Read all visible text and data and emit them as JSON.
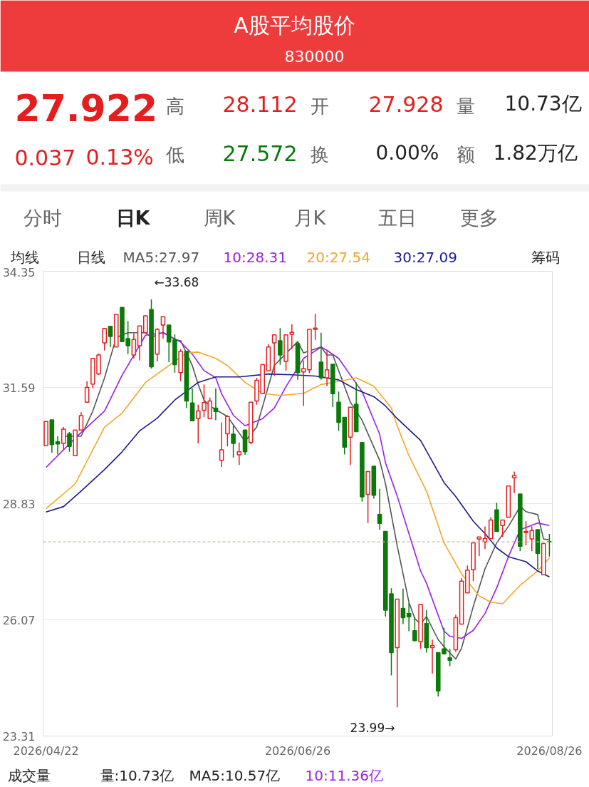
{
  "chart_data": {
    "type": "candlestick",
    "title": "A股平均股价",
    "subtitle": "830000",
    "categories": [
      "2026/04/22",
      null,
      null,
      null,
      null,
      null,
      null,
      null,
      null,
      null,
      null,
      null,
      null,
      null,
      null,
      null,
      null,
      null,
      null,
      null,
      null,
      null,
      null,
      null,
      null,
      null,
      null,
      null,
      null,
      null,
      null,
      null,
      null,
      null,
      null,
      null,
      null,
      null,
      null,
      null,
      null,
      null,
      null,
      "2026/06/26",
      null,
      null,
      null,
      null,
      null,
      null,
      null,
      null,
      null,
      null,
      null,
      null,
      null,
      null,
      null,
      null,
      null,
      null,
      null,
      null,
      null,
      null,
      null,
      null,
      null,
      null,
      null,
      null,
      null,
      null,
      null,
      null,
      null,
      null,
      null,
      null,
      null,
      null,
      null,
      null,
      null,
      null,
      "2026/08/26"
    ],
    "ohlc": [
      [
        30.21,
        30.78,
        30.21,
        30.78
      ],
      [
        30.82,
        30.82,
        30.04,
        30.23
      ],
      [
        30.3,
        30.43,
        30.0,
        30.25
      ],
      [
        30.26,
        30.65,
        30.09,
        30.6
      ],
      [
        30.49,
        30.53,
        30.06,
        30.19
      ],
      [
        29.97,
        30.58,
        29.97,
        30.58
      ],
      [
        30.58,
        31.0,
        30.58,
        30.92
      ],
      [
        31.24,
        31.74,
        31.24,
        31.59
      ],
      [
        31.67,
        32.28,
        31.57,
        32.28
      ],
      [
        31.91,
        32.4,
        31.88,
        32.36
      ],
      [
        32.65,
        32.99,
        32.47,
        32.99
      ],
      [
        33.04,
        33.04,
        32.55,
        32.8
      ],
      [
        32.55,
        33.32,
        32.55,
        33.32
      ],
      [
        33.49,
        33.49,
        32.68,
        32.68
      ],
      [
        32.75,
        33.17,
        32.38,
        32.58
      ],
      [
        32.36,
        32.87,
        32.28,
        32.73
      ],
      [
        32.58,
        33.05,
        32.23,
        33.05
      ],
      [
        32.89,
        33.29,
        32.89,
        33.29
      ],
      [
        33.44,
        33.68,
        32.04,
        32.08
      ],
      [
        32.38,
        33.0,
        32.21,
        32.97
      ],
      [
        33.07,
        33.27,
        32.75,
        33.27
      ],
      [
        33.07,
        33.07,
        32.19,
        32.67
      ],
      [
        32.72,
        32.85,
        31.94,
        32.13
      ],
      [
        31.94,
        32.5,
        31.74,
        32.45
      ],
      [
        32.45,
        32.45,
        31.1,
        31.27
      ],
      [
        31.22,
        31.57,
        30.8,
        30.8
      ],
      [
        30.85,
        31.18,
        30.26,
        31.03
      ],
      [
        31.05,
        31.66,
        30.88,
        31.23
      ],
      [
        30.85,
        31.35,
        30.85,
        31.27
      ],
      [
        31.1,
        31.57,
        30.81,
        31.02
      ],
      [
        29.86,
        30.76,
        29.7,
        30.11
      ],
      [
        30.49,
        30.93,
        30.19,
        30.9
      ],
      [
        30.48,
        30.68,
        29.92,
        30.26
      ],
      [
        29.99,
        30.28,
        29.75,
        30.06
      ],
      [
        30.58,
        30.58,
        29.99,
        30.06
      ],
      [
        30.28,
        31.24,
        30.24,
        31.24
      ],
      [
        31.27,
        31.82,
        31.18,
        31.76
      ],
      [
        31.45,
        32.13,
        31.45,
        32.13
      ],
      [
        31.99,
        32.62,
        31.99,
        32.55
      ],
      [
        32.65,
        32.84,
        31.86,
        32.84
      ],
      [
        32.7,
        33.0,
        32.13,
        32.36
      ],
      [
        32.21,
        32.84,
        31.99,
        32.84
      ],
      [
        32.85,
        33.09,
        32.5,
        32.9
      ],
      [
        32.63,
        32.63,
        31.77,
        31.94
      ],
      [
        31.96,
        32.23,
        31.15,
        32.04
      ],
      [
        32.01,
        32.97,
        31.93,
        32.97
      ],
      [
        32.97,
        33.34,
        32.72,
        33.0
      ],
      [
        32.19,
        32.89,
        31.77,
        31.82
      ],
      [
        31.82,
        32.45,
        31.62,
        32.01
      ],
      [
        32.14,
        32.14,
        31.12,
        31.44
      ],
      [
        31.24,
        31.49,
        30.56,
        30.76
      ],
      [
        30.88,
        30.88,
        30.0,
        30.17
      ],
      [
        30.41,
        31.12,
        29.75,
        31.12
      ],
      [
        31.19,
        31.71,
        30.54,
        30.54
      ],
      [
        30.28,
        30.28,
        28.88,
        28.99
      ],
      [
        29.05,
        29.59,
        28.37,
        29.59
      ],
      [
        29.72,
        29.72,
        28.95,
        29.03
      ],
      [
        28.57,
        29.18,
        28.21,
        28.36
      ],
      [
        28.17,
        28.17,
        26.15,
        26.3
      ],
      [
        26.69,
        26.82,
        24.75,
        25.29
      ],
      [
        25.41,
        26.56,
        23.99,
        26.56
      ],
      [
        26.34,
        26.81,
        25.97,
        26.12
      ],
      [
        26.22,
        26.47,
        25.8,
        26.14
      ],
      [
        25.81,
        26.14,
        25.55,
        25.58
      ],
      [
        25.55,
        26.44,
        25.38,
        26.44
      ],
      [
        25.98,
        26.3,
        25.29,
        25.41
      ],
      [
        25.41,
        25.6,
        24.79,
        25.46
      ],
      [
        25.29,
        25.29,
        24.25,
        24.38
      ],
      [
        25.38,
        25.88,
        25.26,
        25.26
      ],
      [
        25.17,
        25.38,
        24.97,
        25.11
      ],
      [
        25.36,
        26.19,
        25.31,
        26.12
      ],
      [
        25.97,
        27.06,
        25.97,
        26.99
      ],
      [
        26.71,
        27.36,
        26.71,
        27.25
      ],
      [
        27.26,
        27.9,
        26.99,
        27.9
      ],
      [
        27.99,
        28.04,
        27.58,
        28.04
      ],
      [
        27.92,
        28.29,
        27.75,
        28.0
      ],
      [
        28.0,
        28.51,
        28.0,
        28.44
      ],
      [
        28.68,
        28.85,
        28.17,
        28.17
      ],
      [
        28.31,
        28.44,
        28.04,
        28.44
      ],
      [
        28.51,
        29.25,
        28.51,
        29.25
      ],
      [
        29.45,
        29.59,
        29.08,
        29.5
      ],
      [
        29.06,
        29.06,
        27.7,
        27.82
      ],
      [
        28.14,
        28.41,
        27.84,
        28.17
      ],
      [
        27.99,
        28.29,
        27.7,
        28.19
      ],
      [
        28.21,
        28.21,
        27.28,
        27.65
      ],
      [
        27.14,
        27.88,
        27.14,
        27.88
      ],
      [
        27.928,
        28.112,
        27.572,
        27.922
      ]
    ],
    "series": [
      {
        "type": "line",
        "name": "MA5:27.97",
        "color": "#555555",
        "values": [
          null,
          null,
          null,
          30.43,
          null,
          null,
          30.43,
          null,
          31.03,
          null,
          31.82,
          null,
          32.78,
          null,
          32.89,
          null,
          null,
          32.89,
          32.78,
          null,
          32.9,
          null,
          32.73,
          32.7,
          null,
          32.11,
          31.66,
          31.29,
          31.15,
          null,
          30.98,
          30.9,
          null,
          null,
          30.31,
          null,
          30.65,
          null,
          null,
          32.11,
          null,
          null,
          null,
          32.68,
          32.41,
          null,
          null,
          32.55,
          32.36,
          32.36,
          null,
          null,
          31.24,
          null,
          30.81,
          null,
          null,
          29.86,
          29.3,
          null,
          27.83,
          null,
          26.49,
          26.1,
          25.97,
          26.15,
          null,
          25.6,
          25.43,
          null,
          25.14,
          25.4,
          null,
          26.39,
          null,
          27.28,
          null,
          27.9,
          null,
          28.29,
          null,
          28.76,
          28.64,
          null,
          28.57,
          27.99,
          27.97
        ]
      },
      {
        "type": "line",
        "name": "10:28.31",
        "color": "#9b1fe8",
        "values": [
          29.69,
          null,
          null,
          null,
          null,
          30.39,
          null,
          null,
          null,
          null,
          31.03,
          null,
          null,
          31.88,
          null,
          null,
          null,
          32.83,
          null,
          null,
          32.89,
          null,
          null,
          32.67,
          null,
          32.38,
          null,
          31.99,
          null,
          31.82,
          31.44,
          null,
          30.93,
          null,
          30.68,
          null,
          null,
          30.85,
          null,
          31.1,
          null,
          31.61,
          null,
          null,
          32.28,
          null,
          null,
          32.55,
          32.47,
          null,
          32.28,
          null,
          31.88,
          null,
          31.49,
          null,
          null,
          30.48,
          29.8,
          null,
          29.01,
          null,
          null,
          null,
          27.23,
          26.94,
          null,
          null,
          25.8,
          25.68,
          null,
          25.63,
          null,
          25.82,
          null,
          26.22,
          null,
          26.83,
          null,
          27.57,
          null,
          28.21,
          null,
          null,
          28.37,
          null,
          28.31
        ]
      },
      {
        "type": "line",
        "name": "20:27.54",
        "color": "#f5a623",
        "values": [
          28.71,
          null,
          null,
          null,
          null,
          29.3,
          null,
          null,
          null,
          null,
          30.65,
          null,
          null,
          30.98,
          null,
          null,
          null,
          31.71,
          null,
          null,
          null,
          32.11,
          null,
          null,
          32.41,
          null,
          32.43,
          null,
          null,
          32.28,
          null,
          32.11,
          null,
          null,
          31.71,
          null,
          null,
          31.45,
          null,
          null,
          31.4,
          null,
          null,
          null,
          31.45,
          null,
          null,
          31.66,
          null,
          null,
          null,
          31.76,
          null,
          31.82,
          null,
          null,
          31.62,
          null,
          null,
          31.1,
          30.68,
          null,
          29.97,
          null,
          null,
          29.13,
          null,
          null,
          27.9,
          null,
          null,
          27.16,
          null,
          null,
          26.64,
          null,
          26.49,
          null,
          26.45,
          null,
          null,
          26.89,
          null,
          null,
          27.23,
          null,
          27.54
        ]
      },
      {
        "type": "line",
        "name": "30:27.09",
        "color": "#1a1a8c",
        "values": [
          28.63,
          null,
          null,
          28.76,
          null,
          null,
          29.13,
          null,
          null,
          null,
          29.64,
          null,
          null,
          30.06,
          null,
          null,
          30.56,
          null,
          null,
          30.86,
          null,
          null,
          31.29,
          null,
          null,
          null,
          31.71,
          null,
          null,
          31.84,
          null,
          null,
          null,
          31.84,
          null,
          null,
          null,
          null,
          31.91,
          null,
          null,
          null,
          31.89,
          null,
          null,
          null,
          31.86,
          null,
          null,
          null,
          31.77,
          null,
          null,
          31.54,
          null,
          null,
          31.37,
          null,
          31.15,
          null,
          30.85,
          null,
          null,
          null,
          30.33,
          null,
          null,
          null,
          29.33,
          null,
          29.0,
          null,
          null,
          28.41,
          null,
          28.12,
          null,
          27.78,
          null,
          27.57,
          null,
          null,
          27.45,
          null,
          27.23,
          null,
          27.09
        ]
      }
    ],
    "ylim": [
      23.31,
      34.35
    ],
    "yticks": [
      23.31,
      26.07,
      28.83,
      31.59,
      34.35
    ],
    "grid": "y",
    "legend": "top left",
    "ref_lines": [
      {
        "axis": "y",
        "value": 27.922,
        "color": "#c8b89a",
        "line_style": "dashed"
      }
    ],
    "annotations": [
      "27.922",
      "高",
      "28.112",
      "开",
      "27.928",
      "量",
      "10.73亿",
      "0.037",
      "0.13%",
      "低",
      "27.572",
      "换",
      "0.00%",
      "额",
      "1.82万亿",
      "分时",
      "日K",
      "周K",
      "月K",
      "五日",
      "更多",
      "均线",
      "日线",
      "筹码",
      "成交量",
      "量:10.73亿",
      "MA5:10.57亿",
      "10:11.36亿",
      "←33.68",
      "23.99→"
    ]
  }
}
